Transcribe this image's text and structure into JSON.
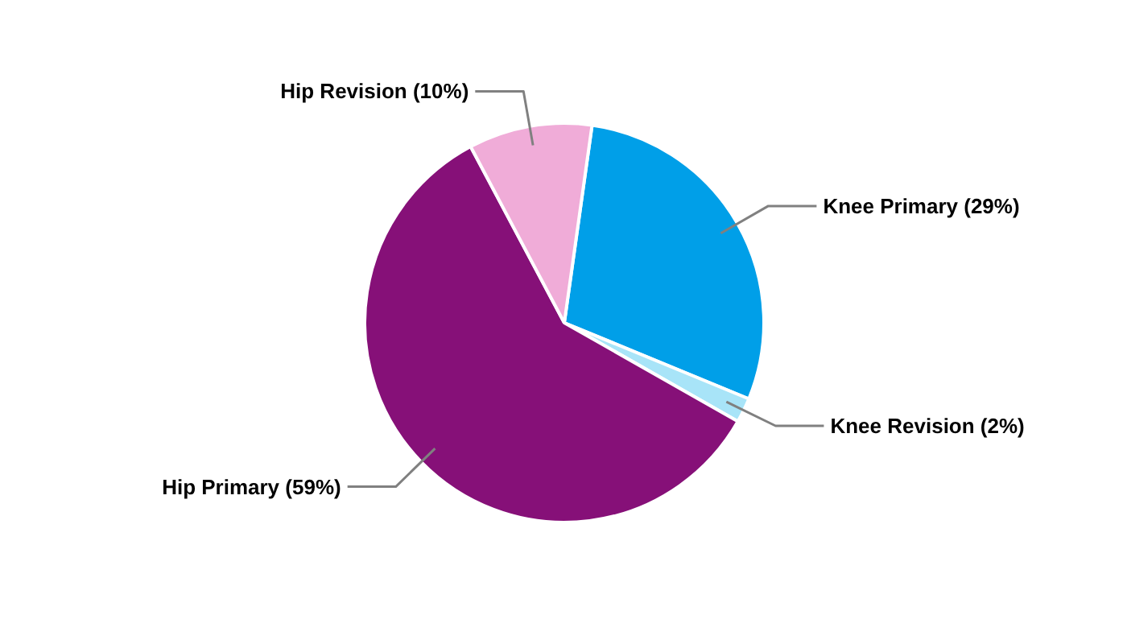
{
  "chart_data": {
    "type": "pie",
    "categories": [
      "Knee Primary (29%)",
      "Knee Revision (2%)",
      "Hip Primary (59%)",
      "Hip Revision (10%)"
    ],
    "values": [
      29,
      2,
      59,
      10
    ],
    "colors": [
      "#009fe8",
      "#a8e4f8",
      "#861078",
      "#f0acd8"
    ]
  }
}
